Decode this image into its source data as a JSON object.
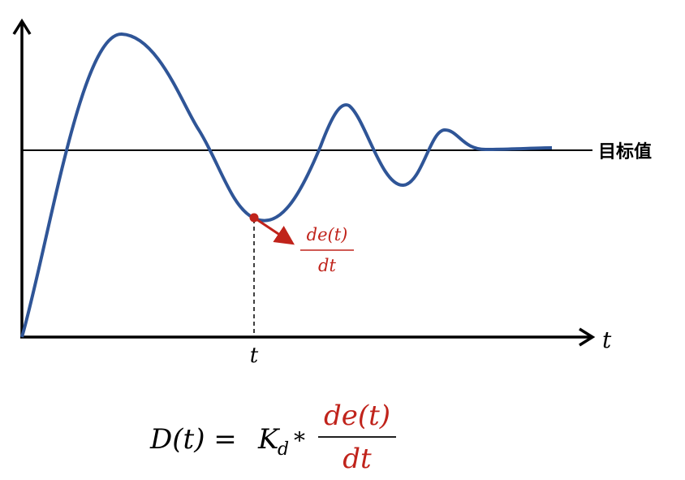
{
  "axis": {
    "x_label": "t"
  },
  "setpoint": {
    "label": "目标值"
  },
  "marker": {
    "label": "t",
    "slope": {
      "numerator": "de(t)",
      "denominator": "dt"
    }
  },
  "formula": {
    "lhs": "D(t) =",
    "gain": "K",
    "gain_subscript": "d",
    "operator": "*",
    "numerator": "de(t)",
    "denominator": "dt"
  }
}
